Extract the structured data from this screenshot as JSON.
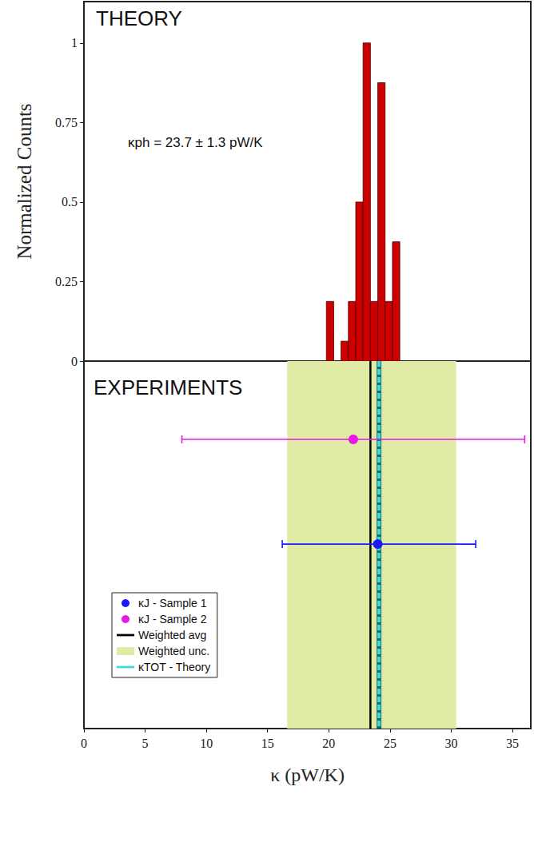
{
  "chart_data": [
    {
      "type": "histogram",
      "panel_label": "THEORY",
      "ylabel": "Normalized Counts",
      "annotation": "κph = 23.7 ± 1.3 pW/K",
      "bins": [
        19.8,
        20.4,
        21.0,
        21.6,
        22.2,
        22.8,
        23.4,
        24.0,
        24.6,
        25.2,
        25.8
      ],
      "counts": [
        0.1875,
        0,
        0.0625,
        0.1875,
        0.5,
        1.0,
        0.1875,
        0.875,
        0.1875,
        0.375
      ],
      "color": "#cc0000",
      "xlim": [
        0,
        36.5
      ],
      "xticks": [
        0,
        5,
        10,
        15,
        20,
        25,
        30,
        35
      ],
      "ylim": [
        0,
        1.13
      ],
      "yticks": [
        0,
        0.25,
        0.5,
        0.75,
        1
      ],
      "tick_labels": "y"
    },
    {
      "type": "errorbar",
      "panel_label": "EXPERIMENTS",
      "xlabel": "κ (pW/K)",
      "xlim": [
        0,
        36.5
      ],
      "xticks": [
        0,
        5,
        10,
        15,
        20,
        25,
        30,
        35
      ],
      "tick_labels": "x",
      "legend": "lower left",
      "series": [
        {
          "name": "κJ - Sample 1",
          "type": "errorbar",
          "color": "#1a1aff",
          "marker": "circle",
          "value": 24.0,
          "x_low": 16.2,
          "x_high": 32.0
        },
        {
          "name": "κJ - Sample 2",
          "type": "errorbar",
          "color": "#e619e6",
          "marker": "circle",
          "value": 22.0,
          "x_low": 8.0,
          "x_high": 36.0
        },
        {
          "name": "Weighted avg",
          "type": "vline",
          "color": "#000000",
          "line_style": "solid",
          "value": 23.4
        },
        {
          "name": "Weighted unc.",
          "type": "band",
          "color": "#e0eba6",
          "x_low": 16.6,
          "x_high": 30.4
        },
        {
          "name": "κTOT - Theory",
          "type": "vline",
          "color": "#3fd9d9",
          "line_style": "dashed",
          "value": 24.1
        }
      ]
    }
  ]
}
